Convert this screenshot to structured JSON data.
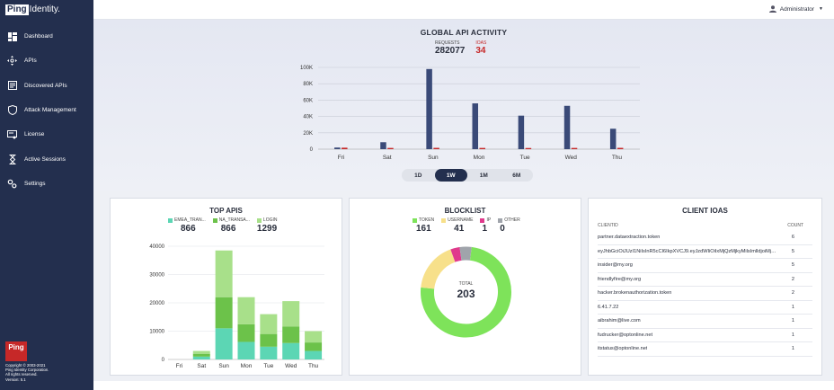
{
  "app": {
    "logo_bold": "Ping",
    "logo_rest": "Identity.",
    "brand_badge": "Ping",
    "copyright": [
      "Copyright © 2003-2021",
      "Ping Identity Corporation.",
      "All rights reserved.",
      "Version: 5.1"
    ]
  },
  "sidebar": {
    "items": [
      {
        "label": "Dashboard",
        "icon": "dashboard-icon"
      },
      {
        "label": "APIs",
        "icon": "apis-icon"
      },
      {
        "label": "Discovered APIs",
        "icon": "document-icon"
      },
      {
        "label": "Attack Management",
        "icon": "shield-icon"
      },
      {
        "label": "License",
        "icon": "license-icon"
      },
      {
        "label": "Active Sessions",
        "icon": "hourglass-icon"
      },
      {
        "label": "Settings",
        "icon": "gear-icon"
      }
    ]
  },
  "header": {
    "user": "Administrator"
  },
  "global": {
    "title": "GLOBAL API ACTIVITY",
    "requests_label": "REQUESTS",
    "requests_value": "282077",
    "ioas_label": "IOAS",
    "ioas_value": "34",
    "range_buttons": [
      "1D",
      "1W",
      "1M",
      "6M"
    ],
    "active_range": "1W"
  },
  "top_apis": {
    "title": "TOP APIS",
    "legend": [
      {
        "label": "EMEA_TRAN...",
        "value": "866",
        "color": "#5cd6b4"
      },
      {
        "label": "NA_TRANSA...",
        "value": "866",
        "color": "#6cc24a"
      },
      {
        "label": "LOGIN",
        "value": "1299",
        "color": "#a8e08a"
      }
    ]
  },
  "blocklist": {
    "title": "BLOCKLIST",
    "total_label": "TOTAL",
    "total_value": "203",
    "legend": [
      {
        "label": "TOKEN",
        "value": "161",
        "color": "#7ee35a"
      },
      {
        "label": "USERNAME",
        "value": "41",
        "color": "#f7e08a"
      },
      {
        "label": "IP",
        "value": "1",
        "color": "#e03a8c"
      },
      {
        "label": "OTHER",
        "value": "0",
        "color": "#a0a4ab"
      }
    ]
  },
  "client_ioas": {
    "title": "CLIENT IOAS",
    "col_client": "CLIENTID",
    "col_count": "COUNT",
    "rows": [
      {
        "id": "partner.dataextraction.token",
        "count": "6"
      },
      {
        "id": "eyJhbGciOiJUzI1NiIsInR5cCI6IkpXVCJ9.eyJzdWIiOiIxMjQzMjkyMilsImlldjoiMjQzM...",
        "count": "5"
      },
      {
        "id": "insider@my.org",
        "count": "5"
      },
      {
        "id": "friendlyfire@my.org",
        "count": "2"
      },
      {
        "id": "hacker.brokenauthorization.token",
        "count": "2"
      },
      {
        "id": "6.41.7.22",
        "count": "1"
      },
      {
        "id": "aibrahim@live.com",
        "count": "1"
      },
      {
        "id": "fudrucker@optonline.net",
        "count": "1"
      },
      {
        "id": "itstatus@optonline.net",
        "count": "1"
      }
    ]
  },
  "chart_data": [
    {
      "type": "bar",
      "title": "GLOBAL API ACTIVITY",
      "categories": [
        "Fri",
        "Sat",
        "Sun",
        "Mon",
        "Tue",
        "Wed",
        "Thu"
      ],
      "series": [
        {
          "name": "REQUESTS",
          "color": "#3a4a78",
          "values": [
            2000,
            8500,
            98000,
            56000,
            41000,
            53000,
            25000
          ]
        },
        {
          "name": "IOAS",
          "color": "#c62828",
          "values": [
            1800,
            1500,
            1600,
            1500,
            1400,
            1500,
            1600
          ]
        }
      ],
      "yticks": [
        "0",
        "20K",
        "40K",
        "60K",
        "80K",
        "100K"
      ],
      "ylim": [
        0,
        100000
      ],
      "grid": true
    },
    {
      "type": "bar",
      "stacked": true,
      "title": "TOP APIS",
      "categories": [
        "Fri",
        "Sat",
        "Sun",
        "Mon",
        "Tue",
        "Wed",
        "Thu"
      ],
      "series": [
        {
          "name": "EMEA_TRAN...",
          "color": "#5cd6b4",
          "values": [
            0,
            1000,
            11000,
            6200,
            4500,
            5800,
            3000
          ]
        },
        {
          "name": "NA_TRANSA...",
          "color": "#6cc24a",
          "values": [
            0,
            1000,
            11000,
            6200,
            4500,
            5800,
            3000
          ]
        },
        {
          "name": "LOGIN",
          "color": "#a8e08a",
          "values": [
            0,
            1000,
            16500,
            9600,
            7000,
            9000,
            4000
          ]
        }
      ],
      "yticks": [
        "0",
        "10000",
        "20000",
        "30000",
        "40000"
      ],
      "ylim": [
        0,
        40000
      ],
      "grid": true
    },
    {
      "type": "pie",
      "donut": true,
      "title": "BLOCKLIST",
      "labels": [
        "TOKEN",
        "USERNAME",
        "IP",
        "OTHER"
      ],
      "values": [
        161,
        41,
        1,
        0
      ],
      "colors": [
        "#7ee35a",
        "#f7e08a",
        "#e03a8c",
        "#a0a4ab"
      ]
    }
  ]
}
